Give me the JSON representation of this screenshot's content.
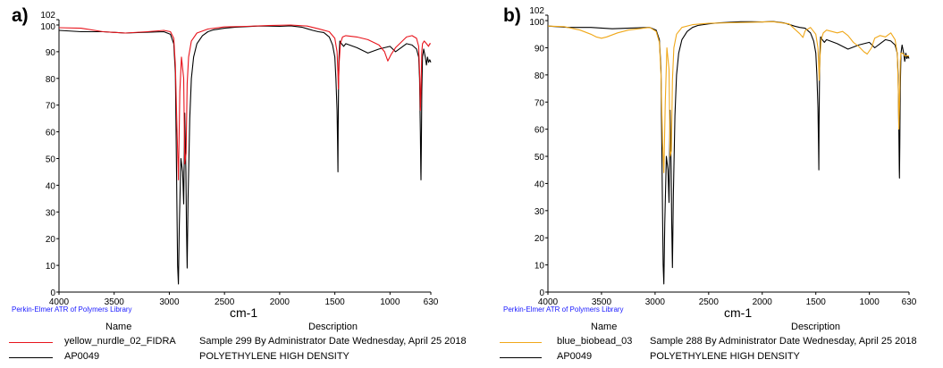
{
  "library_label": "Perkin-Elmer ATR of Polymers Library",
  "legend_headers": {
    "name": "Name",
    "description": "Description"
  },
  "chart_data": [
    {
      "type": "line",
      "panel_label": "a)",
      "xlabel": "cm-1",
      "ylabel": "",
      "xlim": [
        4000,
        630
      ],
      "ylim": [
        0,
        102
      ],
      "x_ticks": [
        4000,
        3500,
        3000,
        2500,
        2000,
        1500,
        1000,
        630
      ],
      "y_ticks": [
        0,
        10,
        20,
        30,
        40,
        50,
        60,
        70,
        80,
        90,
        100,
        102
      ],
      "grid": false,
      "legend_position": "bottom",
      "series": [
        {
          "name": "yellow_nurdle_02_FIDRA",
          "description": "Sample 299 By Administrator Date Wednesday, April 25 2018",
          "color": "#e8141c",
          "x": [
            4000,
            3800,
            3600,
            3400,
            3200,
            3050,
            2990,
            2960,
            2945,
            2930,
            2918,
            2905,
            2890,
            2870,
            2860,
            2848,
            2838,
            2825,
            2800,
            2750,
            2650,
            2500,
            2300,
            2100,
            1900,
            1750,
            1650,
            1550,
            1500,
            1480,
            1472,
            1468,
            1462,
            1450,
            1430,
            1400,
            1300,
            1200,
            1100,
            1050,
            1020,
            990,
            950,
            900,
            850,
            800,
            760,
            740,
            730,
            725,
            719,
            712,
            705,
            690,
            670,
            650,
            640,
            630
          ],
          "y": [
            99,
            98.8,
            97.5,
            97,
            97.5,
            98,
            97.5,
            95,
            85,
            60,
            42,
            75,
            88,
            80,
            48,
            52,
            78,
            88,
            94,
            97,
            98.5,
            99.3,
            99.5,
            99.8,
            100,
            99.6,
            98.6,
            97.5,
            95,
            90,
            82,
            76,
            85,
            93,
            95.5,
            96,
            95.5,
            94.5,
            92.5,
            90,
            86.5,
            89,
            91.5,
            93.5,
            95.5,
            96,
            95,
            92,
            80,
            68,
            75,
            90,
            93,
            94,
            93,
            92,
            93,
            93
          ]
        },
        {
          "name": "AP0049",
          "description": "POLYETHYLENE HIGH DENSITY",
          "color": "#000000",
          "x": [
            4000,
            3800,
            3600,
            3400,
            3200,
            3050,
            2990,
            2960,
            2945,
            2935,
            2925,
            2918,
            2910,
            2895,
            2880,
            2870,
            2860,
            2850,
            2845,
            2838,
            2830,
            2815,
            2800,
            2780,
            2750,
            2700,
            2650,
            2600,
            2500,
            2400,
            2300,
            2200,
            2100,
            2000,
            1900,
            1800,
            1750,
            1700,
            1650,
            1600,
            1550,
            1520,
            1500,
            1490,
            1480,
            1475,
            1472,
            1470,
            1466,
            1462,
            1455,
            1440,
            1420,
            1400,
            1300,
            1200,
            1100,
            1000,
            950,
            900,
            850,
            800,
            760,
            740,
            732,
            725,
            721,
            719,
            716,
            712,
            705,
            695,
            680,
            670,
            660,
            650,
            640,
            630
          ],
          "y": [
            98,
            97.5,
            97.5,
            97,
            97.3,
            97.5,
            96.5,
            93,
            82,
            45,
            10,
            3,
            25,
            50,
            45,
            33,
            67,
            45,
            25,
            9,
            35,
            65,
            80,
            88,
            93,
            96,
            97.5,
            98.2,
            98.8,
            99.2,
            99.4,
            99.6,
            99.6,
            99.5,
            99.7,
            99.2,
            98.6,
            98,
            97.5,
            97.2,
            95.5,
            92.5,
            88,
            80,
            68,
            55,
            45,
            60,
            78,
            88,
            94,
            93,
            92,
            93,
            91.5,
            89.5,
            91,
            92,
            90,
            91.5,
            93,
            92.5,
            91,
            88,
            80,
            60,
            45,
            42,
            55,
            75,
            88,
            91,
            88,
            85,
            88,
            86,
            87,
            86
          ]
        }
      ]
    },
    {
      "type": "line",
      "panel_label": "b)",
      "xlabel": "cm-1",
      "ylabel": "",
      "xlim": [
        4000,
        630
      ],
      "ylim": [
        0,
        102
      ],
      "x_ticks": [
        4000,
        3500,
        3000,
        2500,
        2000,
        1500,
        1000,
        630
      ],
      "y_ticks": [
        0,
        10,
        20,
        30,
        40,
        50,
        60,
        70,
        80,
        90,
        100,
        102
      ],
      "grid": false,
      "legend_position": "bottom",
      "series": [
        {
          "name": "blue_biobead_03",
          "description": "Sample 288 By Administrator Date Wednesday, April 25 2018",
          "color": "#f0a81a",
          "x": [
            4000,
            3850,
            3700,
            3600,
            3550,
            3500,
            3450,
            3350,
            3250,
            3150,
            3050,
            2990,
            2960,
            2945,
            2930,
            2918,
            2905,
            2890,
            2870,
            2860,
            2848,
            2838,
            2825,
            2800,
            2750,
            2650,
            2500,
            2300,
            2100,
            1900,
            1750,
            1700,
            1650,
            1620,
            1600,
            1550,
            1500,
            1480,
            1472,
            1468,
            1462,
            1450,
            1430,
            1400,
            1300,
            1250,
            1200,
            1150,
            1100,
            1050,
            1020,
            980,
            950,
            900,
            850,
            800,
            760,
            740,
            730,
            725,
            719,
            712,
            705,
            690,
            670,
            650,
            640,
            630
          ],
          "y": [
            98,
            97.8,
            96.5,
            95,
            94,
            93.5,
            94,
            95.5,
            96.5,
            97,
            97.5,
            96,
            92,
            80,
            55,
            44,
            70,
            90,
            82,
            50,
            52,
            78,
            90,
            95,
            97.5,
            98.5,
            99,
            99.2,
            99.4,
            99.6,
            98.8,
            97,
            95.2,
            93.8,
            96.2,
            97.5,
            95,
            90,
            82,
            78,
            86,
            93,
            95.5,
            96.5,
            95.5,
            96,
            94.5,
            92,
            90.5,
            88.5,
            87.7,
            90,
            93.5,
            94.5,
            94,
            95.5,
            93,
            88,
            75,
            60,
            68,
            85,
            88,
            88,
            87,
            87,
            87,
            87
          ]
        },
        {
          "name": "AP0049",
          "description": "POLYETHYLENE HIGH DENSITY",
          "color": "#000000",
          "x": [
            4000,
            3800,
            3600,
            3400,
            3200,
            3050,
            2990,
            2960,
            2945,
            2935,
            2925,
            2918,
            2910,
            2895,
            2880,
            2870,
            2860,
            2850,
            2845,
            2838,
            2830,
            2815,
            2800,
            2780,
            2750,
            2700,
            2650,
            2600,
            2500,
            2400,
            2300,
            2200,
            2100,
            2000,
            1900,
            1800,
            1750,
            1700,
            1650,
            1600,
            1550,
            1520,
            1500,
            1490,
            1480,
            1475,
            1472,
            1470,
            1466,
            1462,
            1455,
            1440,
            1420,
            1400,
            1300,
            1200,
            1100,
            1000,
            950,
            900,
            850,
            800,
            760,
            740,
            732,
            725,
            721,
            719,
            716,
            712,
            705,
            695,
            680,
            670,
            660,
            650,
            640,
            630
          ],
          "y": [
            98,
            97.5,
            97.5,
            97,
            97.3,
            97.5,
            96.5,
            93,
            82,
            45,
            10,
            3,
            25,
            50,
            45,
            33,
            67,
            45,
            25,
            9,
            35,
            65,
            80,
            88,
            93,
            96,
            97.5,
            98.2,
            98.8,
            99.2,
            99.4,
            99.6,
            99.6,
            99.5,
            99.7,
            99.2,
            98.6,
            98,
            97.5,
            97.2,
            95.5,
            92.5,
            88,
            80,
            68,
            55,
            45,
            60,
            78,
            88,
            94,
            93,
            92,
            93,
            91.5,
            89.5,
            91,
            92,
            90,
            91.5,
            93,
            92.5,
            91,
            88,
            80,
            60,
            45,
            42,
            55,
            75,
            88,
            91,
            88,
            85,
            88,
            86,
            87,
            86
          ]
        }
      ]
    }
  ]
}
